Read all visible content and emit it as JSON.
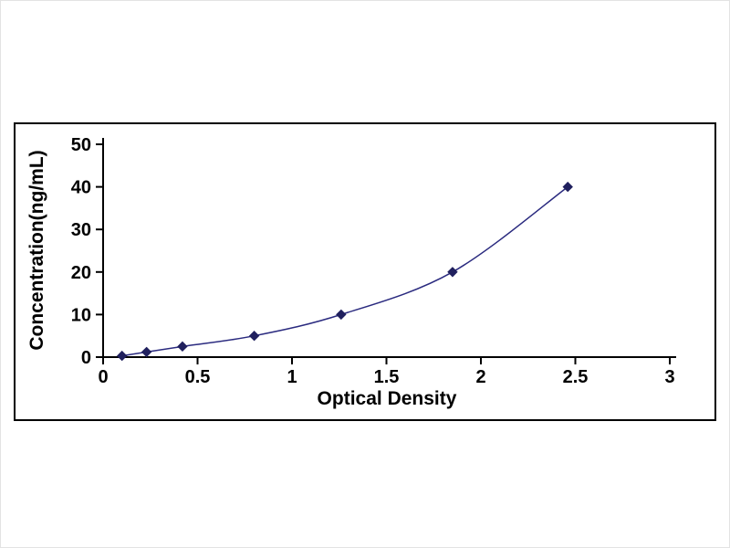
{
  "page": {
    "background": "#ffffff"
  },
  "chart_data": {
    "type": "line",
    "title": "",
    "xlabel": "Optical Density",
    "ylabel": "Concentration(ng/mL)",
    "x": [
      0.1,
      0.23,
      0.42,
      0.8,
      1.26,
      1.85,
      2.46
    ],
    "y": [
      0.3,
      1.2,
      2.5,
      5,
      10,
      20,
      40
    ],
    "xlim": [
      0,
      3
    ],
    "ylim": [
      0,
      50
    ],
    "xticks": [
      0,
      0.5,
      1,
      1.5,
      2,
      2.5,
      3
    ],
    "xtick_labels": [
      "0",
      "0.5",
      "1",
      "1.5",
      "2",
      "2.5",
      "3"
    ],
    "yticks": [
      0,
      10,
      20,
      30,
      40,
      50
    ],
    "ytick_labels": [
      "0",
      "10",
      "20",
      "30",
      "40",
      "50"
    ],
    "grid": false,
    "legend": null,
    "marker": "diamond",
    "line_color": "#2a2a7f",
    "marker_color": "#20205e",
    "axis_color": "#000000"
  }
}
